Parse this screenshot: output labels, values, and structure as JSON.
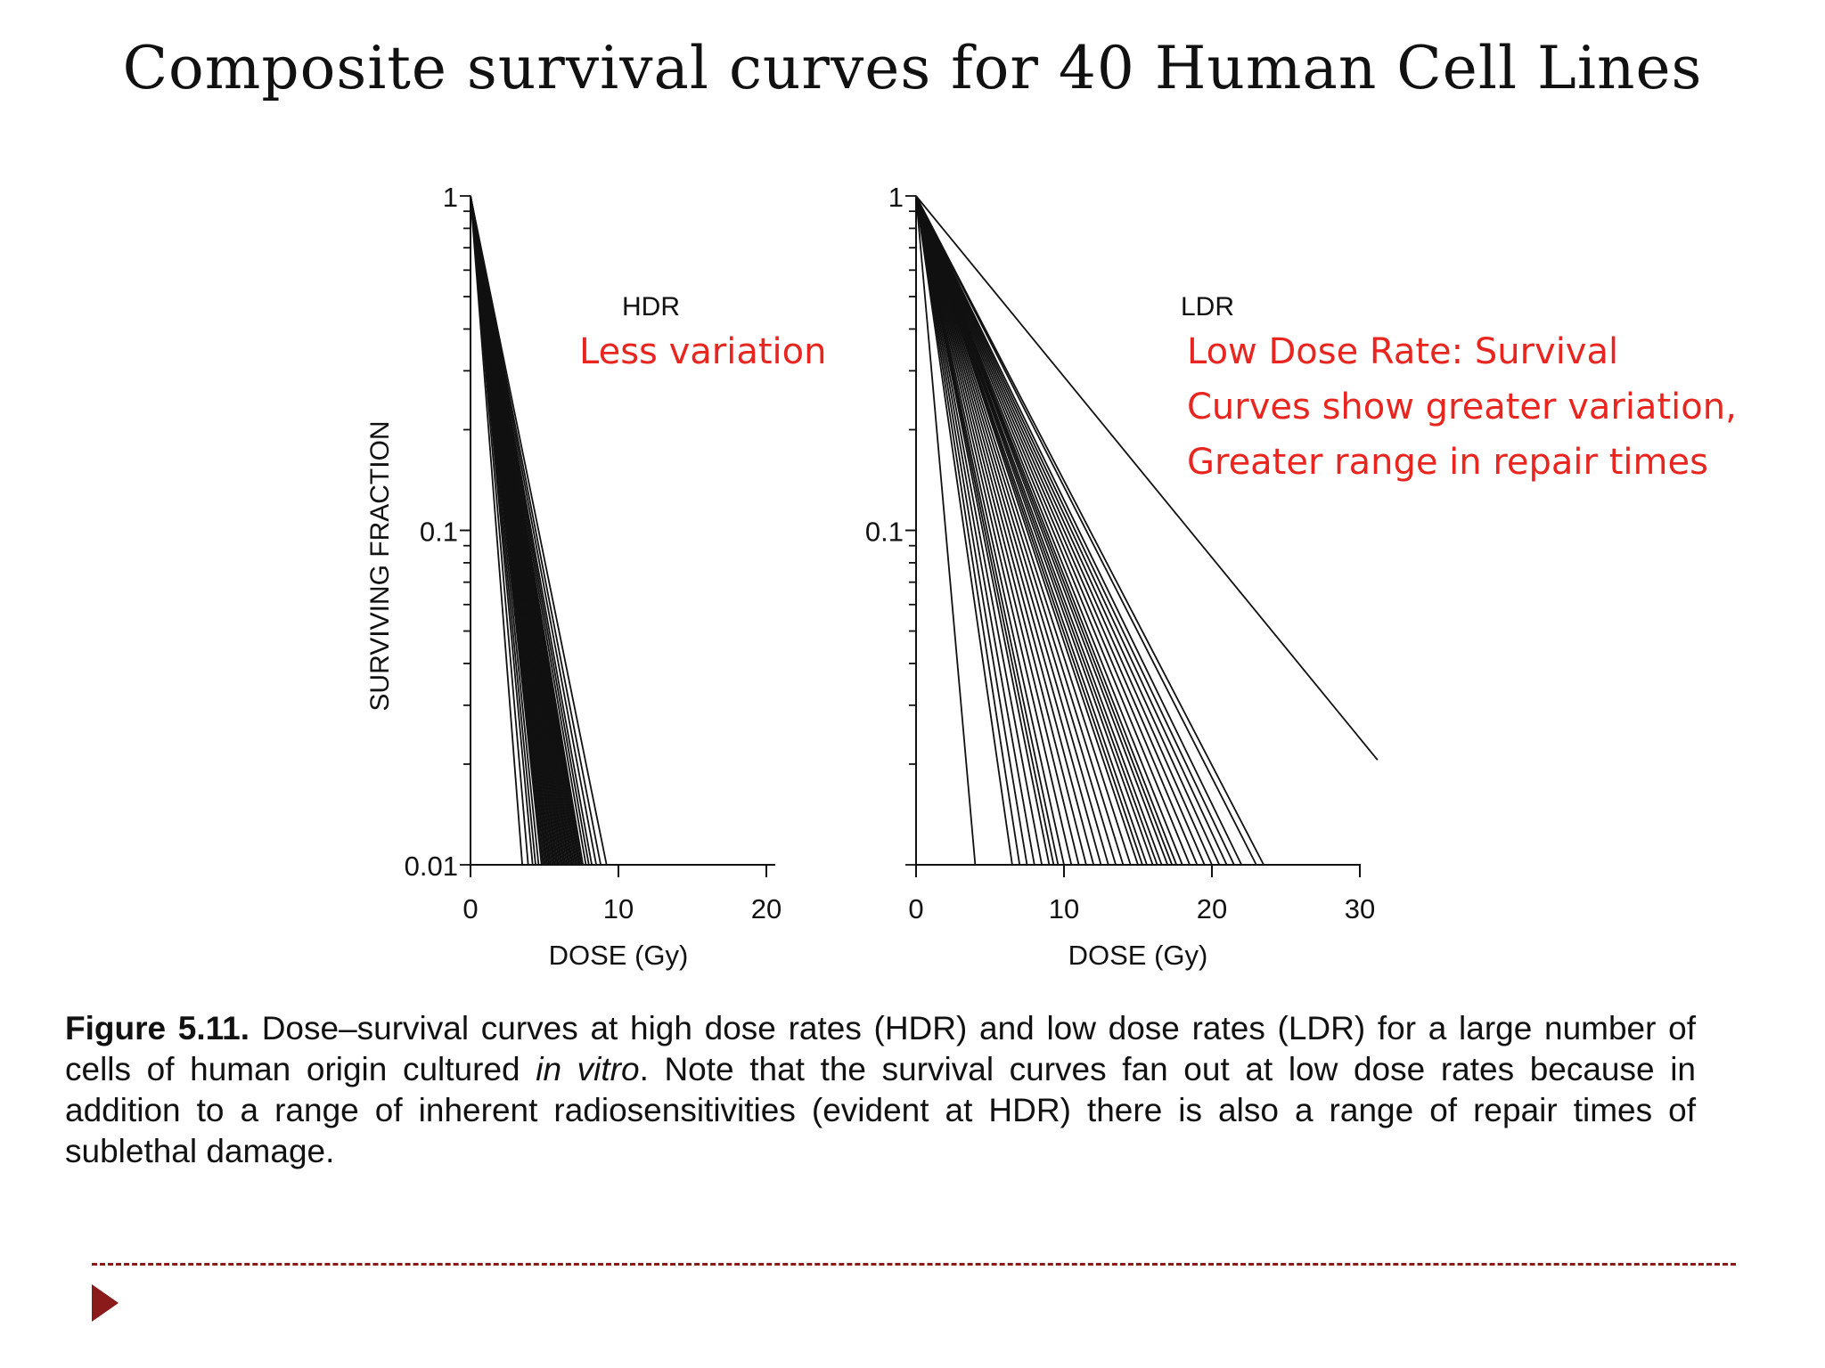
{
  "slide": {
    "title": "Composite survival curves for 40 Human Cell Lines"
  },
  "annotations": {
    "hdr_note": "Less variation",
    "ldr_note_lines": [
      "Low Dose Rate:  Survival",
      "Curves show greater variation,",
      "Greater range in repair times"
    ]
  },
  "caption": {
    "label": "Figure 5.11.",
    "text_before_italic": " Dose–survival curves at high dose rates (HDR) and low dose rates (LDR) for a large number of cells of human origin cultured ",
    "italic": "in vitro",
    "text_after_italic": ". Note that the survival curves fan out at low dose rates because in addition to a range of inherent radiosensitivities (evident at HDR) there is also a range of repair times of sublethal damage."
  },
  "colors": {
    "annotation_red": "#e8261f",
    "curve": "#111111",
    "accent": "#8b1a1a"
  },
  "chart_data": [
    {
      "type": "line",
      "panel_label": "HDR",
      "ylabel": "SURVIVING FRACTION",
      "xlabel": "DOSE (Gy)",
      "xlim": [
        0,
        20
      ],
      "x_ticks": [
        0,
        10,
        20
      ],
      "y_scale": "log",
      "ylim": [
        0.01,
        1
      ],
      "y_ticks": [
        1,
        0.1,
        0.01
      ],
      "y_tick_labels": [
        "1",
        "0.1",
        "0.01"
      ],
      "series_shape": "linear-quadratic (shoulder)",
      "series_dose_at_1pct": [
        3.5,
        3.9,
        4.2,
        4.4,
        4.6,
        4.8,
        4.9,
        5.0,
        5.1,
        5.2,
        5.3,
        5.4,
        5.5,
        5.6,
        5.7,
        5.8,
        5.9,
        6.0,
        6.1,
        6.2,
        6.3,
        6.4,
        6.5,
        6.6,
        6.7,
        6.8,
        6.9,
        7.0,
        7.1,
        7.2,
        7.3,
        7.4,
        7.5,
        7.6,
        7.8,
        8.0,
        8.2,
        8.5,
        8.8,
        9.2
      ]
    },
    {
      "type": "line",
      "panel_label": "LDR",
      "ylabel": "",
      "xlabel": "DOSE (Gy)",
      "xlim": [
        0,
        30
      ],
      "x_ticks": [
        0,
        10,
        20,
        30
      ],
      "y_scale": "log",
      "ylim": [
        0.01,
        1
      ],
      "y_ticks": [
        1,
        0.1
      ],
      "y_tick_labels": [
        "1",
        "0.1"
      ],
      "series_shape": "exponential (straight on log axis)",
      "series_dose_at_1pct": [
        4.0,
        6.5,
        7.0,
        7.5,
        8.0,
        8.5,
        9.0,
        9.3,
        9.6,
        10.0,
        10.5,
        11.0,
        11.5,
        12.0,
        12.5,
        13.0,
        13.5,
        14.0,
        14.5,
        15.0,
        15.3,
        15.6,
        16.0,
        16.3,
        16.6,
        17.0,
        17.3,
        17.6,
        18.0,
        18.5,
        19.0,
        19.5,
        20.0,
        20.5,
        21.0,
        21.5,
        22.0,
        23.0,
        23.5,
        37.0
      ]
    }
  ]
}
